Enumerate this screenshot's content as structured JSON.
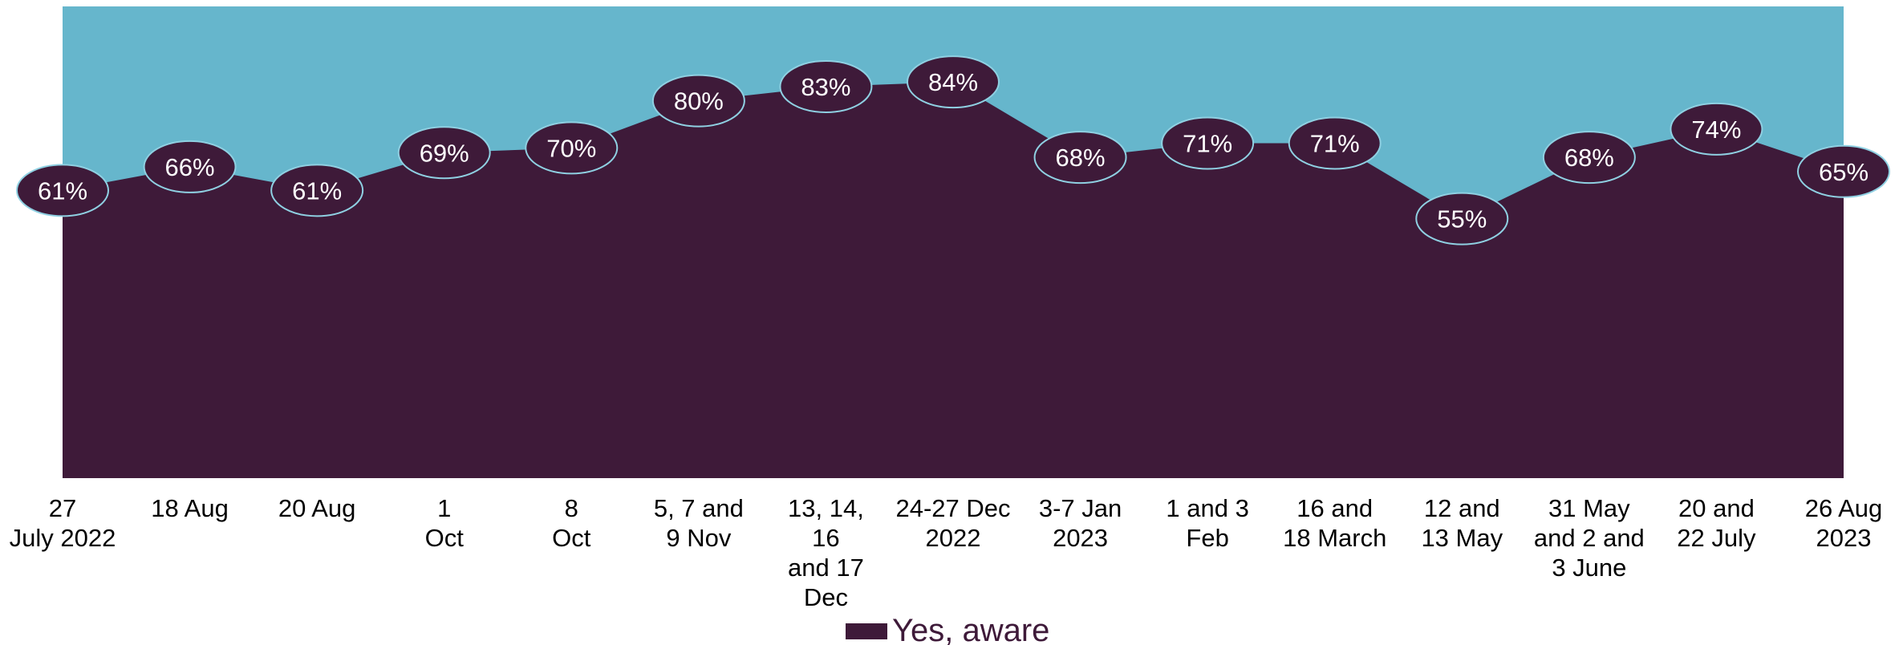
{
  "colors": {
    "area": "#3e1a39",
    "background_band": "#66b6cc",
    "label_fill": "#3e1a39",
    "label_stroke": "#8fd0e2",
    "label_text": "#ffffff",
    "axis_text": "#000000"
  },
  "chart_data": {
    "type": "area",
    "categories": [
      [
        "27",
        "July 2022"
      ],
      [
        "18 Aug"
      ],
      [
        "20 Aug"
      ],
      [
        "1",
        "Oct"
      ],
      [
        "8",
        "Oct"
      ],
      [
        "5, 7 and",
        "9 Nov"
      ],
      [
        "13, 14,",
        "16",
        "and 17",
        "Dec"
      ],
      [
        "24-27 Dec",
        "2022"
      ],
      [
        "3-7 Jan",
        "2023"
      ],
      [
        "1 and 3",
        "Feb"
      ],
      [
        "16 and",
        "18 March"
      ],
      [
        "12 and",
        "13 May"
      ],
      [
        "31 May",
        "and 2 and",
        "3 June"
      ],
      [
        "20 and",
        "22 July"
      ],
      [
        "26 Aug",
        "2023"
      ]
    ],
    "series": [
      {
        "name": "Yes, aware",
        "values": [
          61,
          66,
          61,
          69,
          70,
          80,
          83,
          84,
          68,
          71,
          71,
          55,
          68,
          74,
          65
        ],
        "labels": [
          "61%",
          "66%",
          "61%",
          "69%",
          "70%",
          "80%",
          "83%",
          "84%",
          "68%",
          "71%",
          "71%",
          "55%",
          "68%",
          "74%",
          "65%"
        ]
      }
    ],
    "ylim": [
      0,
      100
    ],
    "grid": false,
    "legend": "bottom-center"
  }
}
